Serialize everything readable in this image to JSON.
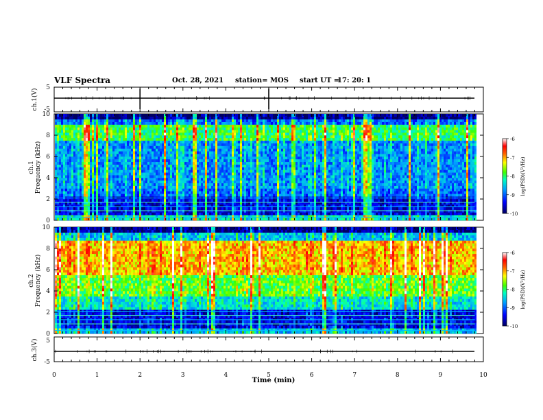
{
  "header": {
    "title": "VLF Spectra",
    "date": "Oct. 28, 2021",
    "station": "station= MOS",
    "start_label": "start  UT =",
    "start_time": "17: 20: 1"
  },
  "chart_data": [
    {
      "type": "line",
      "id": "ch1-waveform",
      "ylabel": "ch.1(V)",
      "ylim": [
        -5,
        5
      ],
      "yticks": [
        "5",
        "-5"
      ],
      "xlim": [
        0,
        10
      ],
      "description_values": {
        "baseline": 0
      }
    },
    {
      "type": "heatmap",
      "id": "ch1-spectrogram",
      "ylabel": "ch.1\nFrequency (kHz)",
      "ylabel_lines": [
        "ch.1",
        "Frequency (kHz)"
      ],
      "ylim": [
        0,
        10
      ],
      "yticks": [
        "0",
        "2",
        "4",
        "6",
        "8",
        "10"
      ],
      "xlim": [
        0,
        10
      ],
      "data_end_min": 9.8,
      "colorbar": {
        "label": "log(PSD)(V²/Hz)",
        "range": [
          -10,
          -6
        ],
        "ticks": [
          "-6",
          "-7",
          "-8",
          "-9",
          "-10"
        ]
      }
    },
    {
      "type": "heatmap",
      "id": "ch2-spectrogram",
      "ylabel": "ch.2\nFrequency (kHz)",
      "ylabel_lines": [
        "ch.2",
        "Frequency (kHz)"
      ],
      "ylim": [
        0,
        10
      ],
      "yticks": [
        "0",
        "2",
        "4",
        "6",
        "8",
        "10"
      ],
      "xlim": [
        0,
        10
      ],
      "data_end_min": 9.8,
      "colorbar": {
        "label": "log(PSD)(V²/Hz)",
        "range": [
          -10,
          -6
        ],
        "ticks": [
          "-6",
          "-7",
          "-8",
          "-9",
          "-10"
        ]
      }
    },
    {
      "type": "line",
      "id": "ch3-waveform",
      "ylabel": "ch.3(V)",
      "ylim": [
        -5,
        5
      ],
      "yticks": [
        "5",
        "-5"
      ],
      "xlim": [
        0,
        10
      ]
    }
  ],
  "xaxis": {
    "label": "Time (min)",
    "ticks": [
      "0",
      "1",
      "2",
      "3",
      "4",
      "5",
      "6",
      "7",
      "8",
      "9",
      "10"
    ],
    "range": [
      0,
      10
    ]
  },
  "colors": {
    "low": "#000080",
    "mid1": "#00b0ff",
    "mid2": "#00ff80",
    "mid3": "#ffff00",
    "high": "#ff0000",
    "max": "#ffffff"
  }
}
